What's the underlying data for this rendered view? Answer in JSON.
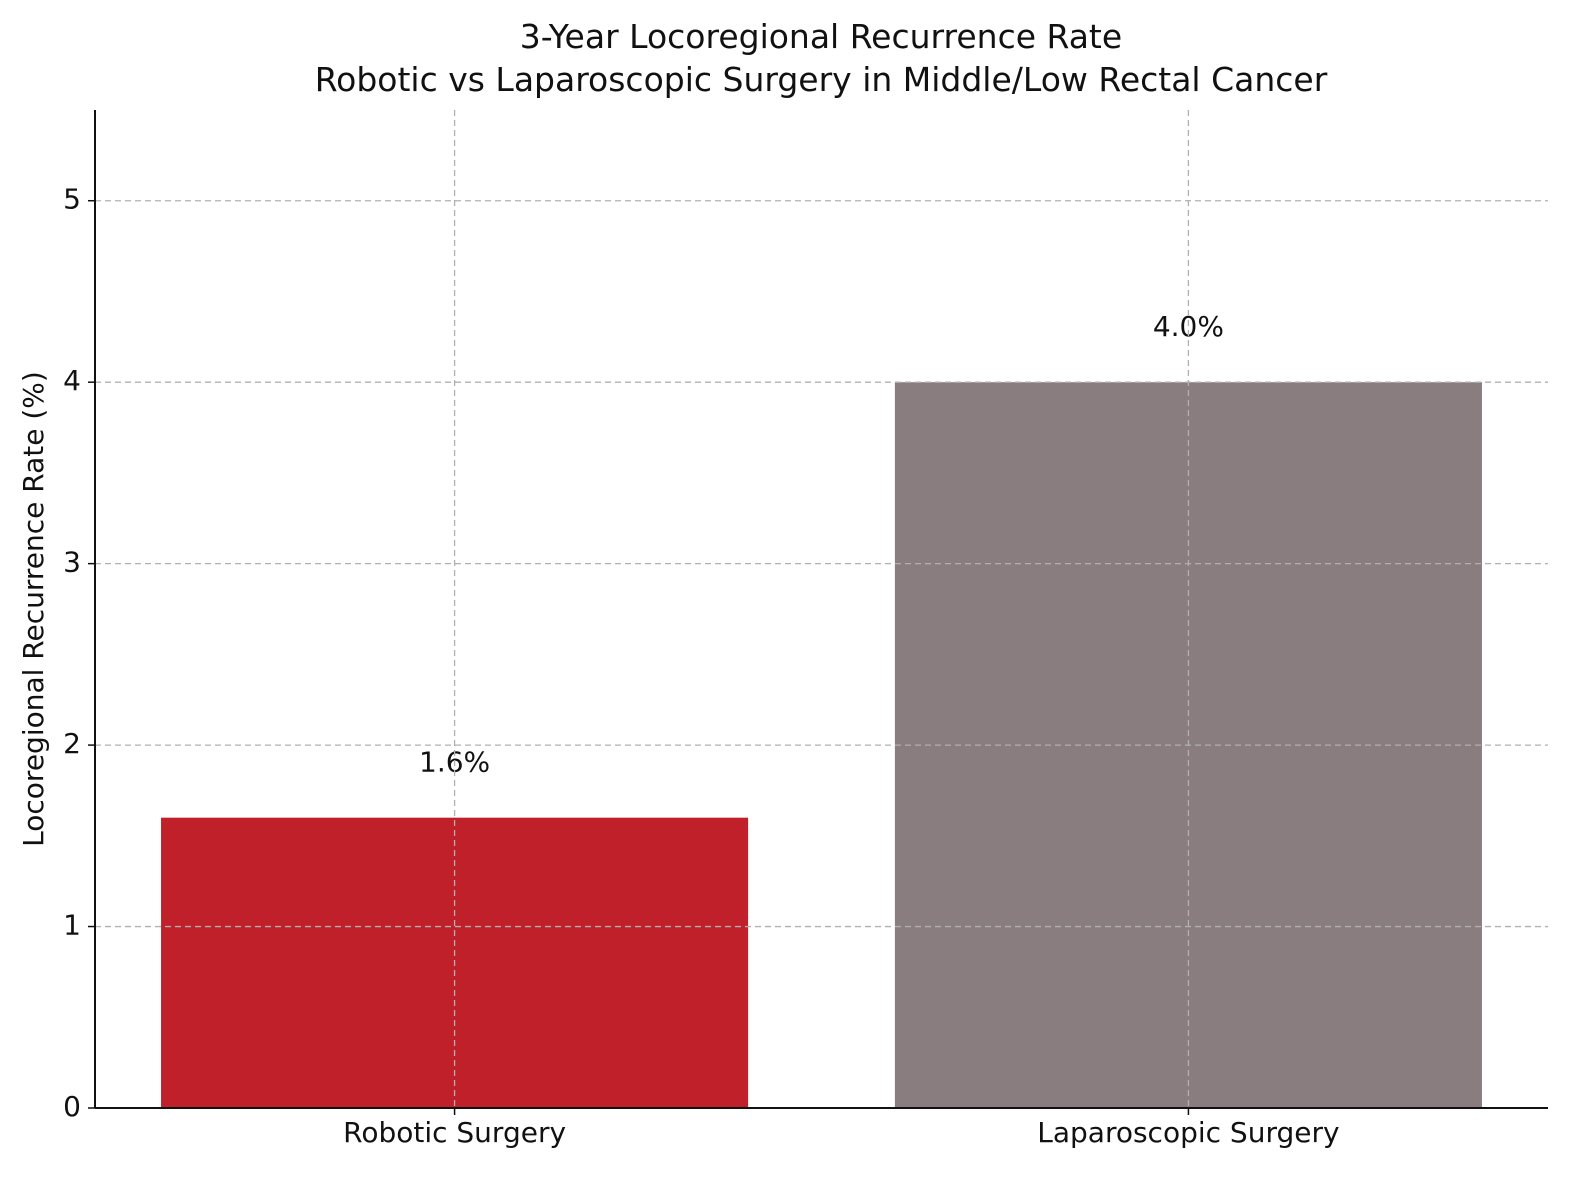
{
  "chart_data": {
    "type": "bar",
    "title": "3-Year Locoregional Recurrence Rate\nRobotic vs Laparoscopic Surgery in Middle/Low Rectal Cancer",
    "y_label": "Locoregional Recurrence Rate (%)",
    "categories": [
      "Robotic Surgery",
      "Laparoscopic Surgery"
    ],
    "values": [
      1.6,
      4.0
    ],
    "value_labels": [
      "1.6%",
      "4.0%"
    ],
    "colors": [
      "#c0202a",
      "#8a7d80"
    ],
    "ylim": [
      0,
      5.5
    ],
    "yticks": [
      0,
      1,
      2,
      3,
      4,
      5
    ],
    "grid": true
  }
}
